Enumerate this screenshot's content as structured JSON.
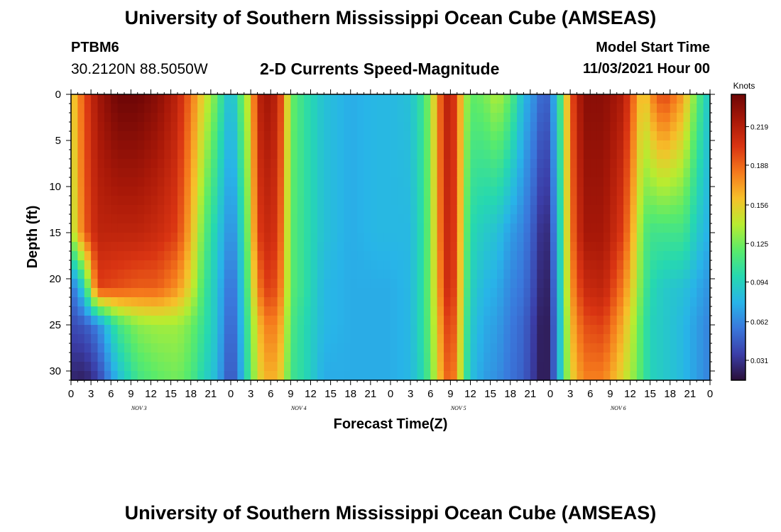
{
  "header": {
    "title": "University of Southern Mississippi Ocean Cube (AMSEAS)",
    "station_id": "PTBM6",
    "coordinates": "30.2120N  88.5050W",
    "plot_title": "2-D Currents Speed-Magnitude",
    "model_start_label": "Model Start Time",
    "model_start_value": "11/03/2021 Hour 00"
  },
  "footer": {
    "title": "University of Southern Mississippi Ocean Cube (AMSEAS)"
  },
  "chart_data": {
    "type": "heatmap",
    "title": "2-D Currents Speed-Magnitude",
    "xlabel": "Forecast Time(Z)",
    "ylabel": "Depth (ft)",
    "x_tick_labels": [
      "0",
      "3",
      "6",
      "9",
      "12",
      "15",
      "18",
      "21",
      "0",
      "3",
      "6",
      "9",
      "12",
      "15",
      "18",
      "21",
      "0",
      "3",
      "6",
      "9",
      "12",
      "15",
      "18",
      "21",
      "0",
      "3",
      "6",
      "9",
      "12",
      "15",
      "18",
      "21",
      "0"
    ],
    "x_range_hours": [
      0,
      96
    ],
    "day_labels": [
      {
        "label": "NOV 3",
        "hour": 10
      },
      {
        "label": "NOV 4",
        "hour": 34
      },
      {
        "label": "NOV 5",
        "hour": 58
      },
      {
        "label": "NOV 6",
        "hour": 82
      }
    ],
    "y_tick_labels": [
      "0",
      "5",
      "10",
      "15",
      "20",
      "25",
      "30"
    ],
    "ylim_ft": [
      0,
      31
    ],
    "colorbar": {
      "unit_label": "Knots",
      "tick_labels": [
        "0.031",
        "0.062",
        "0.094",
        "0.125",
        "0.156",
        "0.188",
        "0.219"
      ],
      "range": [
        0.015,
        0.245
      ],
      "colors": [
        "#2a0f38",
        "#3b3ea8",
        "#3a78dc",
        "#28b4e8",
        "#26d8b0",
        "#5aeb6a",
        "#b8ec30",
        "#f6c02a",
        "#f5791c",
        "#d93412",
        "#a81808",
        "#6e0606"
      ]
    },
    "depths_ft": [
      0,
      15,
      21,
      25,
      31
    ],
    "value_columns": [
      {
        "hour": 0,
        "values": [
          0.15,
          0.135,
          0.05,
          0.04,
          0.025
        ]
      },
      {
        "hour": 2,
        "values": [
          0.195,
          0.19,
          0.095,
          0.045,
          0.022
        ]
      },
      {
        "hour": 4,
        "values": [
          0.225,
          0.215,
          0.2,
          0.06,
          0.035
        ]
      },
      {
        "hour": 7,
        "values": [
          0.245,
          0.215,
          0.195,
          0.11,
          0.08
        ]
      },
      {
        "hour": 10,
        "values": [
          0.245,
          0.215,
          0.19,
          0.13,
          0.11
        ]
      },
      {
        "hour": 13,
        "values": [
          0.235,
          0.21,
          0.19,
          0.135,
          0.12
        ]
      },
      {
        "hour": 16,
        "values": [
          0.215,
          0.2,
          0.175,
          0.135,
          0.125
        ]
      },
      {
        "hour": 18,
        "values": [
          0.185,
          0.165,
          0.15,
          0.125,
          0.115
        ]
      },
      {
        "hour": 20,
        "values": [
          0.15,
          0.12,
          0.11,
          0.105,
          0.095
        ]
      },
      {
        "hour": 22,
        "values": [
          0.12,
          0.09,
          0.085,
          0.085,
          0.08
        ]
      },
      {
        "hour": 23,
        "values": [
          0.095,
          0.075,
          0.065,
          0.06,
          0.055
        ]
      },
      {
        "hour": 24,
        "values": [
          0.08,
          0.062,
          0.052,
          0.048,
          0.042
        ]
      },
      {
        "hour": 25,
        "values": [
          0.1,
          0.075,
          0.065,
          0.06,
          0.055
        ]
      },
      {
        "hour": 26,
        "values": [
          0.135,
          0.11,
          0.1,
          0.095,
          0.09
        ]
      },
      {
        "hour": 27,
        "values": [
          0.15,
          0.14,
          0.13,
          0.12,
          0.115
        ]
      },
      {
        "hour": 28,
        "values": [
          0.215,
          0.2,
          0.18,
          0.16,
          0.15
        ]
      },
      {
        "hour": 29.5,
        "values": [
          0.225,
          0.21,
          0.2,
          0.18,
          0.165
        ]
      },
      {
        "hour": 31,
        "values": [
          0.215,
          0.205,
          0.195,
          0.18,
          0.165
        ]
      },
      {
        "hour": 32,
        "values": [
          0.18,
          0.17,
          0.165,
          0.155,
          0.145
        ]
      },
      {
        "hour": 33,
        "values": [
          0.125,
          0.12,
          0.12,
          0.115,
          0.11
        ]
      },
      {
        "hour": 35,
        "values": [
          0.105,
          0.105,
          0.105,
          0.1,
          0.1
        ]
      },
      {
        "hour": 38,
        "values": [
          0.085,
          0.085,
          0.08,
          0.08,
          0.075
        ]
      },
      {
        "hour": 42,
        "values": [
          0.075,
          0.075,
          0.075,
          0.075,
          0.075
        ]
      },
      {
        "hour": 46,
        "values": [
          0.08,
          0.08,
          0.075,
          0.075,
          0.075
        ]
      },
      {
        "hour": 48,
        "values": [
          0.08,
          0.08,
          0.075,
          0.075,
          0.075
        ]
      },
      {
        "hour": 51,
        "values": [
          0.085,
          0.08,
          0.08,
          0.08,
          0.08
        ]
      },
      {
        "hour": 53,
        "values": [
          0.11,
          0.105,
          0.105,
          0.105,
          0.1
        ]
      },
      {
        "hour": 54,
        "values": [
          0.135,
          0.13,
          0.13,
          0.125,
          0.12
        ]
      },
      {
        "hour": 55,
        "values": [
          0.17,
          0.165,
          0.16,
          0.155,
          0.15
        ]
      },
      {
        "hour": 56,
        "values": [
          0.21,
          0.205,
          0.2,
          0.19,
          0.18
        ]
      },
      {
        "hour": 57,
        "values": [
          0.22,
          0.215,
          0.215,
          0.205,
          0.195
        ]
      },
      {
        "hour": 58,
        "values": [
          0.19,
          0.19,
          0.185,
          0.18,
          0.17
        ]
      },
      {
        "hour": 59,
        "values": [
          0.145,
          0.135,
          0.13,
          0.125,
          0.12
        ]
      },
      {
        "hour": 60,
        "values": [
          0.12,
          0.1,
          0.095,
          0.09,
          0.085
        ]
      },
      {
        "hour": 62,
        "values": [
          0.125,
          0.09,
          0.08,
          0.075,
          0.07
        ]
      },
      {
        "hour": 64,
        "values": [
          0.14,
          0.085,
          0.075,
          0.07,
          0.065
        ]
      },
      {
        "hour": 66,
        "values": [
          0.12,
          0.07,
          0.062,
          0.058,
          0.055
        ]
      },
      {
        "hour": 68,
        "values": [
          0.08,
          0.06,
          0.055,
          0.05,
          0.048
        ]
      },
      {
        "hour": 70,
        "values": [
          0.06,
          0.04,
          0.035,
          0.03,
          0.028
        ]
      },
      {
        "hour": 71,
        "values": [
          0.045,
          0.022,
          0.018,
          0.016,
          0.016
        ]
      },
      {
        "hour": 72,
        "values": [
          0.055,
          0.035,
          0.03,
          0.028,
          0.028
        ]
      },
      {
        "hour": 73,
        "values": [
          0.09,
          0.075,
          0.07,
          0.065,
          0.065
        ]
      },
      {
        "hour": 74,
        "values": [
          0.13,
          0.12,
          0.115,
          0.11,
          0.11
        ]
      },
      {
        "hour": 75,
        "values": [
          0.19,
          0.18,
          0.17,
          0.16,
          0.15
        ]
      },
      {
        "hour": 77,
        "values": [
          0.235,
          0.225,
          0.21,
          0.195,
          0.18
        ]
      },
      {
        "hour": 80,
        "values": [
          0.235,
          0.225,
          0.215,
          0.2,
          0.18
        ]
      },
      {
        "hour": 83,
        "values": [
          0.22,
          0.2,
          0.18,
          0.165,
          0.15
        ]
      },
      {
        "hour": 85,
        "values": [
          0.175,
          0.15,
          0.14,
          0.13,
          0.125
        ]
      },
      {
        "hour": 86,
        "values": [
          0.15,
          0.12,
          0.115,
          0.11,
          0.11
        ]
      },
      {
        "hour": 87,
        "values": [
          0.175,
          0.11,
          0.1,
          0.095,
          0.095
        ]
      },
      {
        "hour": 89,
        "values": [
          0.2,
          0.11,
          0.09,
          0.09,
          0.09
        ]
      },
      {
        "hour": 92,
        "values": [
          0.17,
          0.11,
          0.085,
          0.08,
          0.08
        ]
      },
      {
        "hour": 94,
        "values": [
          0.12,
          0.09,
          0.075,
          0.07,
          0.07
        ]
      },
      {
        "hour": 96,
        "values": [
          0.085,
          0.075,
          0.065,
          0.06,
          0.06
        ]
      }
    ]
  }
}
